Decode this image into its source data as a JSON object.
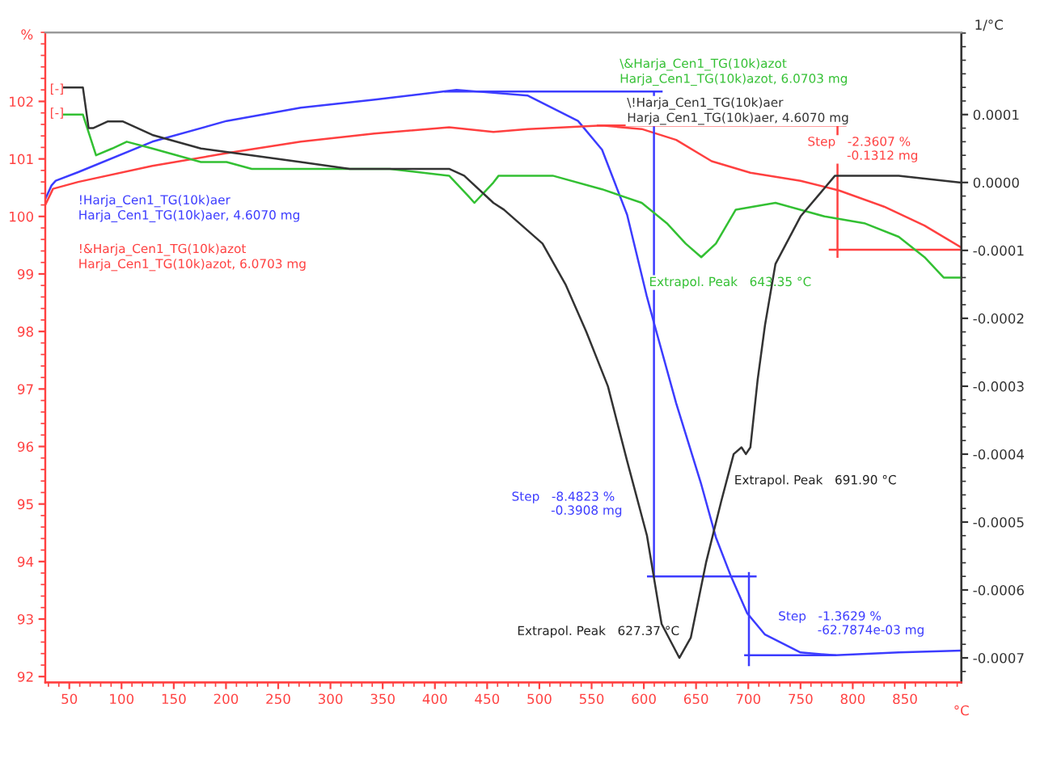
{
  "chart_data": {
    "type": "line",
    "xlabel": "°C",
    "ylabel": "%",
    "y2label": "1/°C",
    "xlim": [
      27,
      904
    ],
    "xticks": [
      50,
      100,
      150,
      200,
      250,
      300,
      350,
      400,
      450,
      500,
      550,
      600,
      650,
      700,
      750,
      800,
      850
    ],
    "ylim": [
      91.9,
      103.2
    ],
    "yticks": [
      92,
      93,
      94,
      95,
      96,
      97,
      98,
      99,
      100,
      101,
      102
    ],
    "y2lim": [
      -0.000736,
      0.000221
    ],
    "y2ticks": [
      {
        "value": 0.0001,
        "label": "0.0001"
      },
      {
        "value": 0.0,
        "label": "0.0000"
      },
      {
        "value": -0.0001,
        "label": "-0.0001"
      },
      {
        "value": -0.0002,
        "label": "-0.0002"
      },
      {
        "value": -0.0003,
        "label": "-0.0003"
      },
      {
        "value": -0.0004,
        "label": "-0.0004"
      },
      {
        "value": -0.0005,
        "label": "-0.0005"
      },
      {
        "value": -0.0006,
        "label": "-0.0006"
      },
      {
        "value": -0.0007,
        "label": "-0.0007"
      }
    ],
    "grid": false,
    "legend": false,
    "series": [
      {
        "name": "!Harja_Cen1_TG(10k)aer\nHarja_Cen1_TG(10k)aer, 4.6070 mg",
        "color": "#3c3cff",
        "x": [
          27,
          33,
          37,
          58.5,
          129.5,
          200.6,
          271.6,
          342.6,
          420.7,
          442,
          489,
          537,
          560,
          584,
          602.6,
          609.7,
          631,
          655,
          669,
          683.5,
          699,
          716,
          750,
          783,
          844,
          903
        ],
        "values": [
          100.3,
          100.54,
          100.62,
          100.77,
          101.3,
          101.66,
          101.89,
          102.03,
          102.2,
          102.17,
          102.1,
          101.66,
          101.16,
          100.03,
          98.63,
          98.15,
          96.75,
          95.34,
          94.42,
          93.74,
          93.1,
          92.73,
          92.42,
          92.37,
          92.42,
          92.45
        ]
      },
      {
        "name": "!&Harja_Cen1_TG(10k)azot\nHarja_Cen1_TG(10k)azot, 6.0703 mg",
        "color": "#ff4040",
        "x": [
          27,
          34.4,
          58.5,
          129.5,
          200.6,
          271.6,
          342,
          413.6,
          456,
          489,
          560,
          598,
          631,
          665,
          702,
          750,
          787,
          830,
          868.7,
          903
        ],
        "values": [
          100.2,
          100.48,
          100.6,
          100.88,
          101.1,
          101.3,
          101.44,
          101.55,
          101.47,
          101.52,
          101.58,
          101.52,
          101.33,
          100.96,
          100.76,
          100.62,
          100.45,
          100.17,
          99.84,
          99.47
        ]
      },
      {
        "name": "\\&Harja_Cen1_TG(10k)azot\nHarja_Cen1_TG(10k)azot, 6.0703 mg",
        "color": "#33c033",
        "axis": "y2",
        "x": [
          45,
          63,
          75.6,
          91,
          105,
          129.5,
          176,
          200.6,
          224.7,
          233,
          253,
          271.6,
          318.5,
          356.8,
          413.6,
          432,
          437.8,
          456,
          461,
          480,
          512.8,
          560,
          598,
          622,
          640,
          655,
          669,
          688,
          726,
          773,
          811,
          844,
          868.7,
          887,
          903
        ],
        "values": [
          0.0001,
          0.0001,
          4e-05,
          5e-05,
          6e-05,
          5e-05,
          3e-05,
          3e-05,
          2e-05,
          2e-05,
          2e-05,
          2e-05,
          2e-05,
          2e-05,
          1e-05,
          -2e-05,
          -3e-05,
          0.0,
          1e-05,
          1e-05,
          1e-05,
          -1e-05,
          -3e-05,
          -6e-05,
          -9e-05,
          -0.00011,
          -9e-05,
          -4e-05,
          -3e-05,
          -5e-05,
          -6e-05,
          -8e-05,
          -0.00011,
          -0.00014,
          -0.00014
        ]
      },
      {
        "name": "\\!Harja_Cen1_TG(10k)aer\nHarja_Cen1_TG(10k)aer, 4.6070 mg",
        "color": "#333333",
        "axis": "y2",
        "x": [
          45,
          63,
          68.5,
          72.7,
          87,
          101,
          129.5,
          176,
          224.7,
          271.6,
          318.5,
          366.7,
          413.6,
          428,
          456,
          466,
          503,
          525,
          545,
          565.6,
          584,
          603,
          617,
          634,
          645,
          659.5,
          674,
          686,
          693.5,
          697.7,
          702,
          709,
          716,
          726,
          750,
          783,
          811,
          844,
          903
        ],
        "values": [
          0.00014,
          0.00014,
          8e-05,
          8e-05,
          9e-05,
          9e-05,
          7e-05,
          5e-05,
          4e-05,
          3e-05,
          2e-05,
          2e-05,
          2e-05,
          1e-05,
          -3e-05,
          -4e-05,
          -9e-05,
          -0.00015,
          -0.00022,
          -0.0003,
          -0.00041,
          -0.00052,
          -0.00065,
          -0.0007,
          -0.00067,
          -0.00056,
          -0.00047,
          -0.0004,
          -0.00039,
          -0.0004,
          -0.00039,
          -0.00029,
          -0.00021,
          -0.00012,
          -5e-05,
          1e-05,
          1e-05,
          1e-05,
          0.0
        ]
      },
      {
        "color": "#3c3cff",
        "x": [
          410,
          617
        ],
        "values": [
          102.17,
          102.17
        ]
      },
      {
        "color": "#3c3cff",
        "x": [
          609.7,
          609.7
        ],
        "values": [
          102.17,
          93.74
        ]
      },
      {
        "color": "#3c3cff",
        "x": [
          604,
          707
        ],
        "values": [
          93.74,
          93.74
        ]
      },
      {
        "color": "#3c3cff",
        "x": [
          700.6,
          700.6
        ],
        "values": [
          93.8,
          92.2
        ]
      },
      {
        "color": "#3c3cff",
        "x": [
          697,
          783
        ],
        "values": [
          92.37,
          92.37
        ]
      },
      {
        "color": "#ff4040",
        "x": [
          556,
          793
        ],
        "values": [
          101.58,
          101.58
        ]
      },
      {
        "color": "#ff4040",
        "x": [
          785.4,
          785.4
        ],
        "values": [
          101.58,
          99.3
        ]
      },
      {
        "color": "#ff4040",
        "x": [
          778,
          903
        ],
        "values": [
          99.42,
          99.42
        ]
      }
    ],
    "annotations": [
      "Step   -2.3607 %\n          -0.1312 mg",
      "Extrapol. Peak   643.35 °C",
      "Step   -8.4823 %\n          -0.3908 mg",
      "Extrapol. Peak   691.90 °C",
      "Extrapol. Peak   627.37 °C",
      "Step   -1.3629 %\n          -62.7874e-03 mg",
      "[-]",
      "[-]"
    ]
  }
}
